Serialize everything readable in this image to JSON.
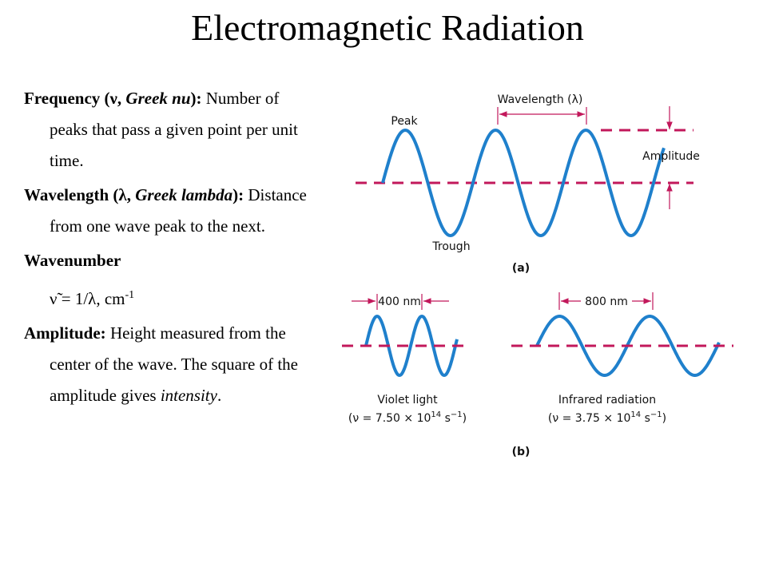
{
  "title": "Electromagnetic Radiation",
  "definitions": [
    {
      "runs": [
        "Frequency (ν, ",
        "Greek nu",
        "): ",
        "Number of peaks that pass a given point per unit time."
      ]
    },
    {
      "runs": [
        "Wavelength (λ, ",
        "Greek lambda",
        "): ",
        "Distance from one wave peak to the next."
      ]
    },
    {
      "runs": [
        "Wavenumber"
      ],
      "formula": [
        "ν̃ = 1/λ, cm",
        "-1"
      ]
    },
    {
      "runs": [
        "Amplitude: ",
        "Height measured from the center of the wave. The square of the amplitude gives ",
        "intensity",
        "."
      ]
    }
  ],
  "figure": {
    "panel_a": {
      "wavelength": "Wavelength (λ)",
      "peak": "Peak",
      "amplitude": "Amplitude",
      "trough": "Trough",
      "label": "(a)"
    },
    "panel_b": {
      "violet": {
        "width": "400 nm",
        "name": "Violet light",
        "formula": [
          "(ν = 7.50 × 10",
          "14",
          " s",
          "−1",
          ")"
        ]
      },
      "infrared": {
        "width": "800 nm",
        "name": "Infrared radiation",
        "formula": [
          "(ν = 3.75 × 10",
          "14",
          " s",
          "−1",
          ")"
        ]
      },
      "label": "(b)"
    }
  }
}
